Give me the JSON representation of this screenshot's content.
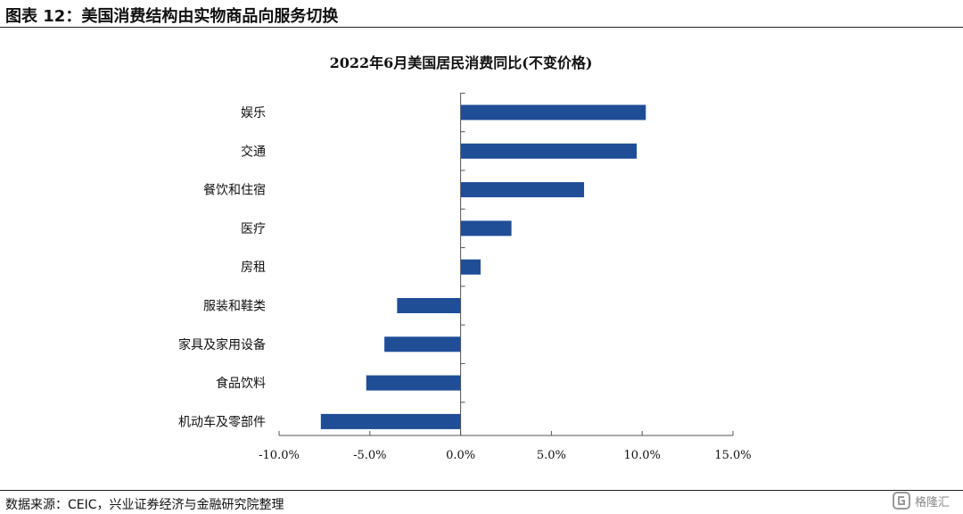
{
  "figure_title": "图表 12：美国消费结构由实物商品向服务切换",
  "source_note": "数据来源：CEIC，兴业证券经济与金融研究院整理",
  "watermark_text": "格隆汇",
  "colors": {
    "bar": "#1f4e97",
    "axis": "#555555",
    "text": "#111111"
  },
  "chart_data": {
    "type": "bar",
    "orientation": "horizontal",
    "title": "2022年6月美国居民消费同比(不变价格)",
    "categories": [
      "娱乐",
      "交通",
      "餐饮和住宿",
      "医疗",
      "房租",
      "服装和鞋类",
      "家具及家用设备",
      "食品饮料",
      "机动车及零部件"
    ],
    "values": [
      10.2,
      9.7,
      6.8,
      2.8,
      1.1,
      -3.5,
      -4.2,
      -5.2,
      -7.7
    ],
    "xlim": [
      -10,
      15
    ],
    "xticks": [
      -10,
      -5,
      0,
      5,
      10,
      15
    ],
    "xtick_labels": [
      "-10.0%",
      "-5.0%",
      "0.0%",
      "5.0%",
      "10.0%",
      "15.0%"
    ],
    "xlabel": "",
    "ylabel": "",
    "grid": false,
    "legend": "none"
  }
}
